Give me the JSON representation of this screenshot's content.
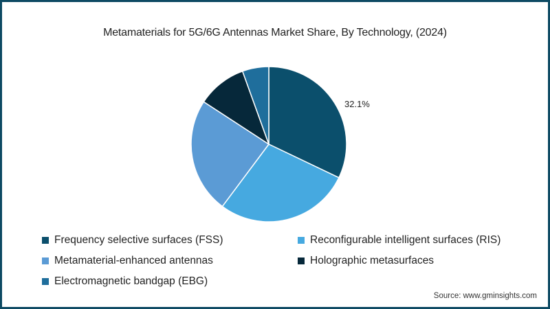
{
  "title": "Metamaterials for 5G/6G Antennas Market Share, By Technology, (2024)",
  "source": "Source: www.gminsights.com",
  "chart_data": {
    "type": "pie",
    "title": "Metamaterials for 5G/6G Antennas Market Share, By Technology, (2024)",
    "categories": [
      "Frequency selective surfaces (FSS)",
      "Reconfigurable intelligent surfaces (RIS)",
      "Metamaterial-enhanced antennas",
      "Holographic metasurfaces",
      "Electromagnetic bandgap (EBG)"
    ],
    "values": [
      32.1,
      28.1,
      24.0,
      10.3,
      5.5
    ],
    "colors": [
      "#0b4f6c",
      "#46a9e0",
      "#5b9bd5",
      "#06283a",
      "#1f6e9c"
    ],
    "data_labels": [
      {
        "category": "Frequency selective surfaces (FSS)",
        "text": "32.1%"
      }
    ],
    "start_angle": "12 o'clock, clockwise",
    "legend_position": "bottom"
  },
  "legend": [
    {
      "label": "Frequency selective surfaces (FSS)",
      "color": "#0b4f6c"
    },
    {
      "label": "Reconfigurable intelligent surfaces (RIS)",
      "color": "#46a9e0"
    },
    {
      "label": "Metamaterial-enhanced antennas",
      "color": "#5b9bd5"
    },
    {
      "label": "Holographic metasurfaces",
      "color": "#06283a"
    },
    {
      "label": "Electromagnetic bandgap (EBG)",
      "color": "#1f6e9c"
    }
  ]
}
